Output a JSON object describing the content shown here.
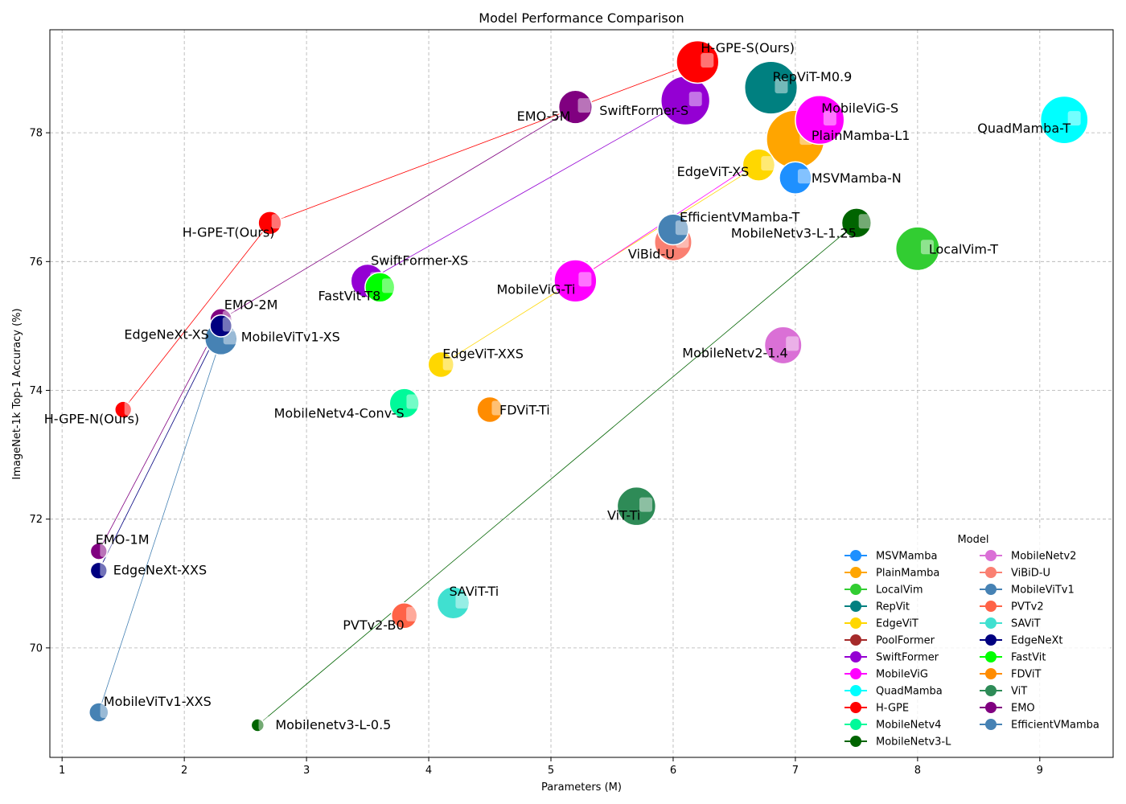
{
  "chart_data": {
    "type": "scatter",
    "title": "Model Performance Comparison",
    "xlabel": "Parameters (M)",
    "ylabel": "ImageNet-1k Top-1 Accuracy (%)",
    "xlim": [
      0.9,
      9.6
    ],
    "ylim": [
      68.3,
      79.6
    ],
    "xticks": [
      1,
      2,
      3,
      4,
      5,
      6,
      7,
      8,
      9
    ],
    "yticks": [
      70,
      72,
      74,
      76,
      78
    ],
    "grid": true,
    "legend": {
      "title": "Model",
      "placement": "lower-right"
    },
    "families": [
      {
        "name": "MSVMamba",
        "color": "#1e90ff"
      },
      {
        "name": "PlainMamba",
        "color": "#ffa500"
      },
      {
        "name": "LocalVim",
        "color": "#32cd32"
      },
      {
        "name": "RepVit",
        "color": "#008080"
      },
      {
        "name": "EdgeViT",
        "color": "#ffd700"
      },
      {
        "name": "PoolFormer",
        "color": "#a52a2a"
      },
      {
        "name": "SwiftFormer",
        "color": "#9400d3"
      },
      {
        "name": "MobileViG",
        "color": "#ff00ff"
      },
      {
        "name": "QuadMamba",
        "color": "#00ffff"
      },
      {
        "name": "H-GPE",
        "color": "#ff0000"
      },
      {
        "name": "MobileNetv4",
        "color": "#00fa9a"
      },
      {
        "name": "MobileNetv3-L",
        "color": "#006400"
      },
      {
        "name": "MobileNetv2",
        "color": "#da70d6"
      },
      {
        "name": "ViBiD-U",
        "color": "#fa8072"
      },
      {
        "name": "MobileViTv1",
        "color": "#4682b4"
      },
      {
        "name": "PVTv2",
        "color": "#ff6347"
      },
      {
        "name": "SAViT",
        "color": "#40e0d0"
      },
      {
        "name": "EdgeNeXt",
        "color": "#000080"
      },
      {
        "name": "FastVit",
        "color": "#00ff00"
      },
      {
        "name": "FDViT",
        "color": "#ff8c00"
      },
      {
        "name": "ViT",
        "color": "#2e8b57"
      },
      {
        "name": "EMO",
        "color": "#800080"
      },
      {
        "name": "EfficientVMamba",
        "color": "#4682b4"
      }
    ],
    "points": [
      {
        "label": "H-GPE-S(Ours)",
        "family": "H-GPE",
        "x": 6.2,
        "y": 79.1,
        "size": 3.3
      },
      {
        "label": "RepViT-M0.9",
        "family": "RepVit",
        "x": 6.8,
        "y": 78.7,
        "size": 4.1
      },
      {
        "label": "MobileViG-S",
        "family": "MobileViG",
        "x": 7.2,
        "y": 78.2,
        "size": 3.8
      },
      {
        "label": "QuadMamba-T",
        "family": "QuadMamba",
        "x": 9.2,
        "y": 78.2,
        "size": 3.7
      },
      {
        "label": "PlainMamba-L1",
        "family": "PlainMamba",
        "x": 7.0,
        "y": 77.9,
        "size": 4.5
      },
      {
        "label": "SwiftFormer-S",
        "family": "SwiftFormer",
        "x": 6.1,
        "y": 78.5,
        "size": 3.8
      },
      {
        "label": "EMO-5M",
        "family": "EMO",
        "x": 5.2,
        "y": 78.4,
        "size": 2.6
      },
      {
        "label": "EdgeViT-XS",
        "family": "EdgeViT",
        "x": 6.7,
        "y": 77.5,
        "size": 2.5
      },
      {
        "label": "MSVMamba-N",
        "family": "MSVMamba",
        "x": 7.0,
        "y": 77.3,
        "size": 2.5
      },
      {
        "label": "EfficientVMamba-T",
        "family": "EfficientVMamba",
        "x": 6.0,
        "y": 76.5,
        "size": 2.4
      },
      {
        "label": "ViBid-U",
        "family": "ViBiD-U",
        "x": 6.0,
        "y": 76.3,
        "size": 2.9
      },
      {
        "label": "MobileNetv3-L-1.25",
        "family": "MobileNetv3-L",
        "x": 7.5,
        "y": 76.6,
        "size": 2.3
      },
      {
        "label": "LocalVim-T",
        "family": "LocalVim",
        "x": 8.0,
        "y": 76.2,
        "size": 3.4
      },
      {
        "label": "H-GPE-T(Ours)",
        "family": "H-GPE",
        "x": 2.7,
        "y": 76.6,
        "size": 1.8
      },
      {
        "label": "SwiftFormer-XS",
        "family": "SwiftFormer",
        "x": 3.5,
        "y": 75.7,
        "size": 2.6
      },
      {
        "label": "FastVit-T8",
        "family": "FastVit",
        "x": 3.6,
        "y": 75.6,
        "size": 2.3
      },
      {
        "label": "MobileViG-Ti",
        "family": "MobileViG",
        "x": 5.2,
        "y": 75.7,
        "size": 3.3
      },
      {
        "label": "EMO-2M",
        "family": "EMO",
        "x": 2.3,
        "y": 75.1,
        "size": 1.7
      },
      {
        "label": "EdgeNeXt-XS",
        "family": "EdgeNeXt",
        "x": 2.3,
        "y": 75.0,
        "size": 1.7
      },
      {
        "label": "MobileViTv1-XS",
        "family": "MobileViTv1",
        "x": 2.3,
        "y": 74.8,
        "size": 2.5
      },
      {
        "label": "EdgeViT-XXS",
        "family": "EdgeViT",
        "x": 4.1,
        "y": 74.4,
        "size": 2.0
      },
      {
        "label": "MobileNetv2-1.4",
        "family": "MobileNetv2",
        "x": 6.9,
        "y": 74.7,
        "size": 2.9
      },
      {
        "label": "MobileNetv4-Conv-S",
        "family": "MobileNetv4",
        "x": 3.8,
        "y": 73.8,
        "size": 2.3
      },
      {
        "label": "FDViT-Ti",
        "family": "FDViT",
        "x": 4.5,
        "y": 73.7,
        "size": 2.0
      },
      {
        "label": "H-GPE-N(Ours)",
        "family": "H-GPE",
        "x": 1.5,
        "y": 73.7,
        "size": 1.3
      },
      {
        "label": "ViT-Ti",
        "family": "ViT",
        "x": 5.7,
        "y": 72.2,
        "size": 3.0
      },
      {
        "label": "EMO-1M",
        "family": "EMO",
        "x": 1.3,
        "y": 71.5,
        "size": 1.3
      },
      {
        "label": "EdgeNeXt-XXS",
        "family": "EdgeNeXt",
        "x": 1.3,
        "y": 71.2,
        "size": 1.3
      },
      {
        "label": "SAViT-Ti",
        "family": "SAViT",
        "x": 4.2,
        "y": 70.7,
        "size": 2.5
      },
      {
        "label": "PVTv2-B0",
        "family": "PVTv2",
        "x": 3.8,
        "y": 70.5,
        "size": 2.0
      },
      {
        "label": "MobileViTv1-XXS",
        "family": "MobileViTv1",
        "x": 1.3,
        "y": 69.0,
        "size": 1.5
      },
      {
        "label": "Mobilenetv3-L-0.5",
        "family": "MobileNetv3-L",
        "x": 2.6,
        "y": 68.8,
        "size": 1.0
      }
    ],
    "lines": [
      {
        "family": "H-GPE",
        "color": "#ff0000",
        "points": [
          [
            1.5,
            73.7
          ],
          [
            2.7,
            76.6
          ],
          [
            6.2,
            79.1
          ]
        ]
      },
      {
        "family": "EMO",
        "color": "#800080",
        "points": [
          [
            1.3,
            71.5
          ],
          [
            2.3,
            75.1
          ],
          [
            5.2,
            78.4
          ]
        ]
      },
      {
        "family": "EdgeNeXt",
        "color": "#000080",
        "points": [
          [
            1.3,
            71.2
          ],
          [
            2.3,
            75.0
          ]
        ]
      },
      {
        "family": "MobileViTv1",
        "color": "#4682b4",
        "points": [
          [
            1.3,
            69.0
          ],
          [
            2.3,
            74.8
          ]
        ]
      },
      {
        "family": "SwiftFormer",
        "color": "#9400d3",
        "points": [
          [
            3.5,
            75.7
          ],
          [
            6.1,
            78.5
          ]
        ]
      },
      {
        "family": "EdgeViT",
        "color": "#ffd700",
        "points": [
          [
            4.1,
            74.4
          ],
          [
            6.7,
            77.5
          ]
        ]
      },
      {
        "family": "MobileViG",
        "color": "#ff00ff",
        "points": [
          [
            5.2,
            75.7
          ],
          [
            7.2,
            78.2
          ]
        ]
      },
      {
        "family": "MobileNetv3-L",
        "color": "#006400",
        "points": [
          [
            2.6,
            68.8
          ],
          [
            7.5,
            76.6
          ]
        ]
      }
    ]
  }
}
